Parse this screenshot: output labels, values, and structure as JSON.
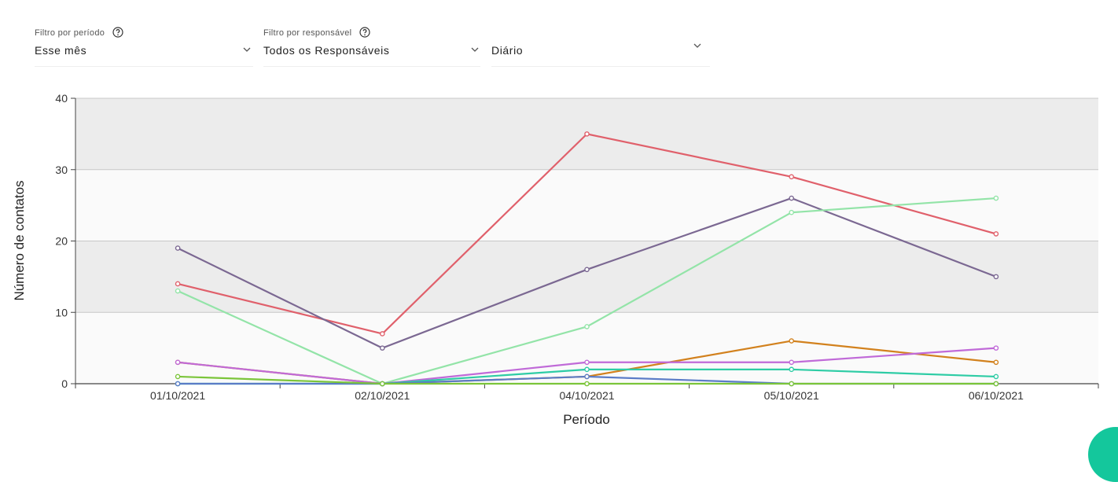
{
  "filters": {
    "period": {
      "label": "Filtro por período",
      "value": "Esse mês"
    },
    "responsible": {
      "label": "Filtro por responsável",
      "value": "Todos os Responsáveis"
    },
    "granularity": {
      "value": "Diário"
    }
  },
  "icons": {
    "help": "help-circle-icon",
    "dropdown": "chevron-down-icon"
  },
  "chart_data": {
    "type": "line",
    "xlabel": "Período",
    "ylabel": "Número de contatos",
    "ylim": [
      0,
      40
    ],
    "yticks": [
      0,
      10,
      20,
      30,
      40
    ],
    "grid": "horizontal, alternating bands",
    "categories": [
      "01/10/2021",
      "02/10/2021",
      "04/10/2021",
      "05/10/2021",
      "06/10/2021"
    ],
    "series": [
      {
        "color": "#e0606b",
        "values": [
          14,
          7,
          35,
          29,
          21
        ]
      },
      {
        "color": "#7b6892",
        "values": [
          19,
          5,
          16,
          26,
          15
        ]
      },
      {
        "color": "#93e4a8",
        "values": [
          13,
          0,
          8,
          24,
          26
        ]
      },
      {
        "color": "#d2811d",
        "values": [
          3,
          0,
          1,
          6,
          3
        ]
      },
      {
        "color": "#c06ad8",
        "values": [
          3,
          0,
          3,
          3,
          5
        ]
      },
      {
        "color": "#2ecca5",
        "values": [
          0,
          0,
          2,
          2,
          1
        ]
      },
      {
        "color": "#5b7cc7",
        "values": [
          0,
          0,
          1,
          0,
          0
        ]
      },
      {
        "color": "#7bc53a",
        "values": [
          1,
          0,
          0,
          0,
          0
        ]
      }
    ]
  }
}
